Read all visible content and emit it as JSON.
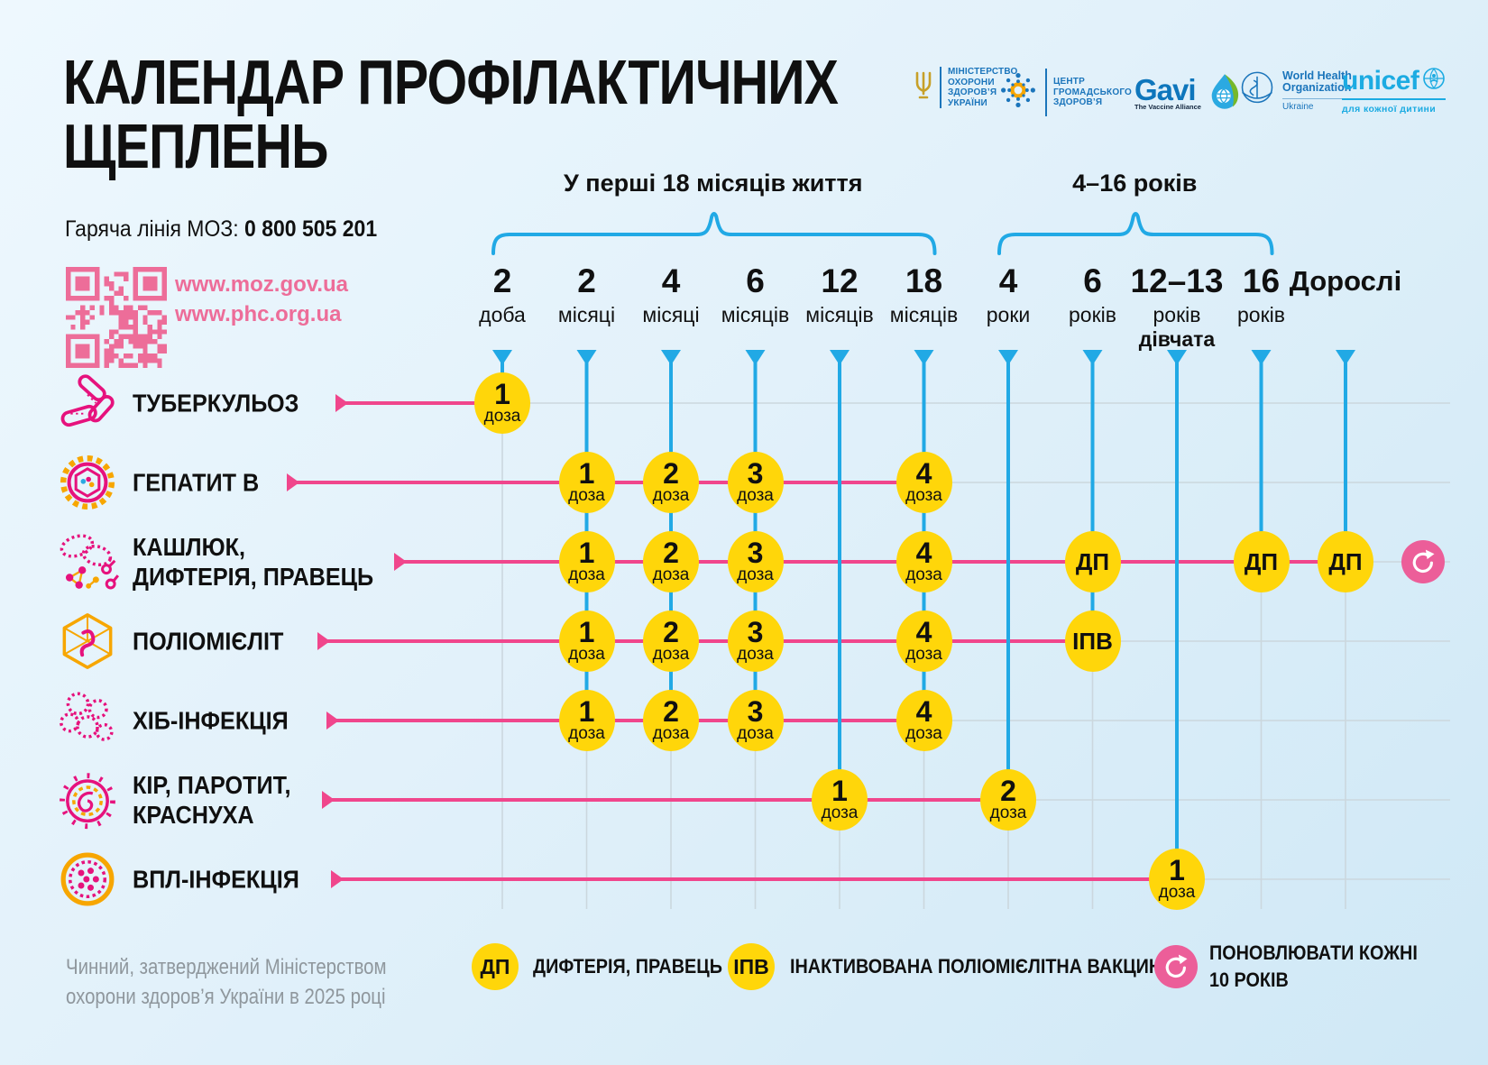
{
  "title": "КАЛЕНДАР ПРОФІЛАКТИЧНИХ ЩЕПЛЕНЬ",
  "hotline": {
    "label": "Гаряча лінія МОЗ:",
    "number": "0 800 505 201"
  },
  "links": [
    "www.moz.gov.ua",
    "www.phc.org.ua"
  ],
  "logos": {
    "moz": {
      "lines": [
        "МІНІСТЕРСТВО",
        "ОХОРОНИ",
        "ЗДОРОВ’Я",
        "УКРАЇНИ"
      ]
    },
    "phc": {
      "lines": [
        "ЦЕНТР",
        "ГРОМАДСЬКОГО",
        "ЗДОРОВ’Я"
      ]
    },
    "gavi": {
      "name": "Gavi",
      "tagline": "The Vaccine Alliance"
    },
    "who": {
      "lines": [
        "World Health",
        "Organization"
      ],
      "country": "Ukraine"
    },
    "unicef": {
      "name": "unicef",
      "tagline": "для кожної дитини"
    }
  },
  "footer": "Чинний, затверджений Міністерством охорони здоров’я України в 2025 році",
  "colors": {
    "accent_pink": "#F0468C",
    "badge_pink": "#EC5E99",
    "link_pink": "#ED6D99",
    "blue": "#21A9E5",
    "yellow": "#FFD60A",
    "grid_grey": "#CBD7DE",
    "icon_pink": "#E6127D",
    "icon_orange": "#F7A600",
    "text_grey": "#8F979D"
  },
  "chart_data": {
    "type": "table",
    "title": "КАЛЕНДАР ПРОФІЛАКТИЧНИХ ЩЕПЛЕНЬ",
    "age_groups": [
      {
        "label": "У перші 18 місяців життя",
        "from_col": 0,
        "to_col": 5
      },
      {
        "label": "4–16 років",
        "from_col": 6,
        "to_col": 9
      }
    ],
    "columns": [
      {
        "value": "2",
        "unit": "доба"
      },
      {
        "value": "2",
        "unit": "місяці"
      },
      {
        "value": "4",
        "unit": "місяці"
      },
      {
        "value": "6",
        "unit": "місяців"
      },
      {
        "value": "12",
        "unit": "місяців"
      },
      {
        "value": "18",
        "unit": "місяців"
      },
      {
        "value": "4",
        "unit": "роки"
      },
      {
        "value": "6",
        "unit": "років"
      },
      {
        "value": "12–13",
        "unit": "років",
        "note": "дівчата"
      },
      {
        "value": "16",
        "unit": "років"
      },
      {
        "value": "Дорослі",
        "unit": ""
      }
    ],
    "rows": [
      {
        "disease": [
          "ТУБЕРКУЛЬОЗ"
        ],
        "icon": "tuberculosis-icon",
        "doses": [
          {
            "col": 0,
            "label": "1",
            "sub": "доза"
          }
        ]
      },
      {
        "disease": [
          "ГЕПАТИТ В"
        ],
        "icon": "hepatitis-b-icon",
        "doses": [
          {
            "col": 1,
            "label": "1",
            "sub": "доза"
          },
          {
            "col": 2,
            "label": "2",
            "sub": "доза"
          },
          {
            "col": 3,
            "label": "3",
            "sub": "доза"
          },
          {
            "col": 5,
            "label": "4",
            "sub": "доза"
          }
        ]
      },
      {
        "disease": [
          "КАШЛЮК,",
          "ДИФТЕРІЯ, ПРАВЕЦЬ"
        ],
        "icon": "pertussis-diphtheria-tetanus-icon",
        "repeat_every_10_years": true,
        "doses": [
          {
            "col": 1,
            "label": "1",
            "sub": "доза"
          },
          {
            "col": 2,
            "label": "2",
            "sub": "доза"
          },
          {
            "col": 3,
            "label": "3",
            "sub": "доза"
          },
          {
            "col": 5,
            "label": "4",
            "sub": "доза"
          },
          {
            "col": 7,
            "label": "ДП"
          },
          {
            "col": 9,
            "label": "ДП"
          },
          {
            "col": 10,
            "label": "ДП"
          }
        ]
      },
      {
        "disease": [
          "ПОЛІОМІЄЛІТ"
        ],
        "icon": "polio-icon",
        "doses": [
          {
            "col": 1,
            "label": "1",
            "sub": "доза"
          },
          {
            "col": 2,
            "label": "2",
            "sub": "доза"
          },
          {
            "col": 3,
            "label": "3",
            "sub": "доза"
          },
          {
            "col": 5,
            "label": "4",
            "sub": "доза"
          },
          {
            "col": 7,
            "label": "ІПВ"
          }
        ]
      },
      {
        "disease": [
          "ХІБ-ІНФЕКЦІЯ"
        ],
        "icon": "hib-icon",
        "doses": [
          {
            "col": 1,
            "label": "1",
            "sub": "доза"
          },
          {
            "col": 2,
            "label": "2",
            "sub": "доза"
          },
          {
            "col": 3,
            "label": "3",
            "sub": "доза"
          },
          {
            "col": 5,
            "label": "4",
            "sub": "доза"
          }
        ]
      },
      {
        "disease": [
          "КІР, ПАРОТИТ,",
          "КРАСНУХА"
        ],
        "icon": "measles-mumps-rubella-icon",
        "doses": [
          {
            "col": 4,
            "label": "1",
            "sub": "доза"
          },
          {
            "col": 6,
            "label": "2",
            "sub": "доза"
          }
        ]
      },
      {
        "disease": [
          "ВПЛ-ІНФЕКЦІЯ"
        ],
        "icon": "hpv-icon",
        "doses": [
          {
            "col": 8,
            "label": "1",
            "sub": "доза"
          }
        ]
      }
    ],
    "legend": [
      {
        "symbol": "ДП",
        "text": "ДИФТЕРІЯ, ПРАВЕЦЬ"
      },
      {
        "symbol": "ІПВ",
        "text": "ІНАКТИВОВАНА ПОЛІОМІЄЛІТНА ВАКЦИНА"
      },
      {
        "symbol": "refresh-icon",
        "text": "ПОНОВЛЮВАТИ КОЖНІ 10 РОКІВ"
      }
    ]
  }
}
